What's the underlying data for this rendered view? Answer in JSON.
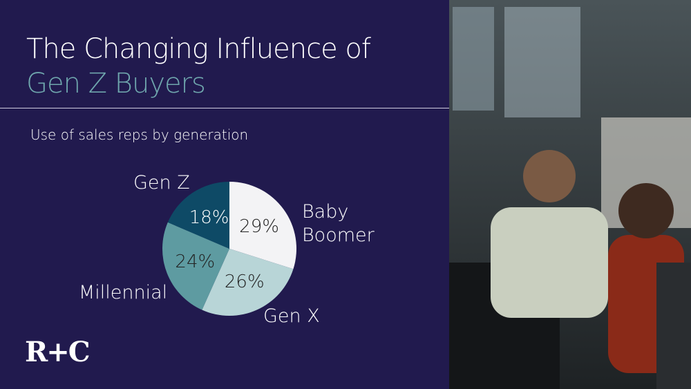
{
  "header": {
    "title": "The Changing Influence of",
    "title_highlight": "Gen Z Buyers"
  },
  "chart_data": {
    "type": "pie",
    "title": "Use of sales reps by generation",
    "categories": [
      "Baby Boomer",
      "Gen X",
      "Millennial",
      "Gen Z"
    ],
    "values": [
      29,
      26,
      24,
      18
    ],
    "value_labels": [
      "29%",
      "26%",
      "24%",
      "18%"
    ],
    "colors": [
      "#f3f3f5",
      "#b8d5d7",
      "#5e9ba1",
      "#0e4a66"
    ]
  },
  "logo": "R+C"
}
